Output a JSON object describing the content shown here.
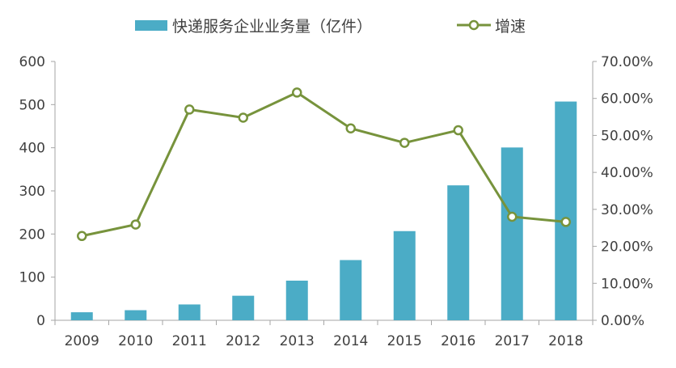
{
  "chart_data": {
    "type": "bar+line",
    "categories": [
      "2009",
      "2010",
      "2011",
      "2012",
      "2013",
      "2014",
      "2015",
      "2016",
      "2017",
      "2018"
    ],
    "series": [
      {
        "name": "快递服务企业业务量（亿件）",
        "type": "bar",
        "axis": "left",
        "color": "#4BACC6",
        "values": [
          18.6,
          23.4,
          36.7,
          56.9,
          91.9,
          139.6,
          206.7,
          312.8,
          400.6,
          507.1
        ]
      },
      {
        "name": "增速",
        "type": "line",
        "axis": "right",
        "color": "#77933C",
        "values": [
          22.8,
          25.9,
          57.0,
          54.8,
          61.6,
          51.9,
          48.0,
          51.4,
          28.0,
          26.6
        ]
      }
    ],
    "left_axis": {
      "ylim": [
        0,
        600
      ],
      "ticks": [
        "0",
        "100",
        "200",
        "300",
        "400",
        "500",
        "600"
      ]
    },
    "right_axis": {
      "ylim": [
        0,
        70
      ],
      "ticks": [
        "0.00%",
        "10.00%",
        "20.00%",
        "30.00%",
        "40.00%",
        "50.00%",
        "60.00%",
        "70.00%"
      ]
    },
    "grid": false,
    "legend": "top"
  }
}
